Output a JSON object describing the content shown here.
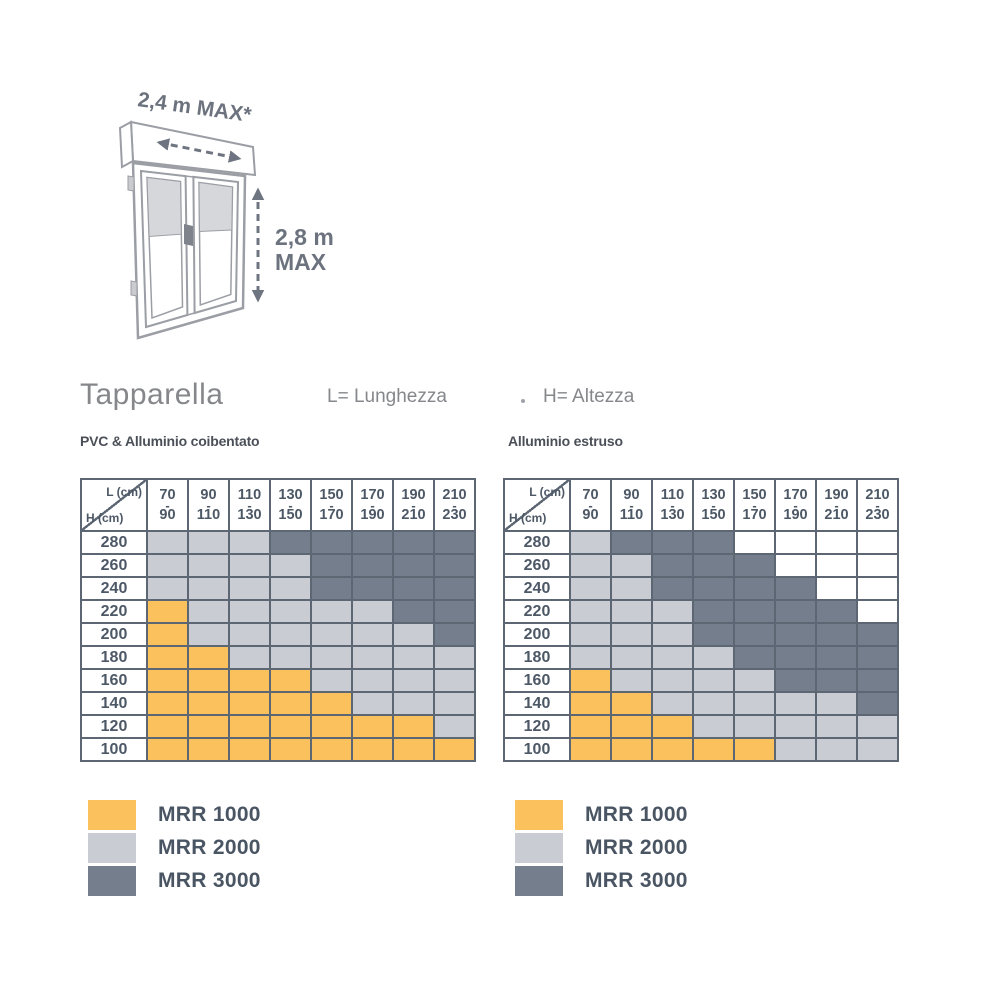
{
  "diagram": {
    "width_label": "2,4 m MAX*",
    "height_label_line1": "2,8 m",
    "height_label_line2": "MAX"
  },
  "title": "Tapparella",
  "dimension_key": {
    "length": "L= Lunghezza",
    "height": "H= Altezza"
  },
  "corner": {
    "length": "L (cm)",
    "height": "H (cm)"
  },
  "col_headers": [
    [
      "70",
      "90"
    ],
    [
      "90",
      "110"
    ],
    [
      "110",
      "130"
    ],
    [
      "130",
      "150"
    ],
    [
      "150",
      "170"
    ],
    [
      "170",
      "190"
    ],
    [
      "190",
      "210"
    ],
    [
      "210",
      "230"
    ]
  ],
  "row_headers": [
    "280",
    "260",
    "240",
    "220",
    "200",
    "180",
    "160",
    "140",
    "120",
    "100"
  ],
  "colors": {
    "1": "#FBC15C",
    "2": "#C9CDD3",
    "3": "#757E8C",
    "0": "#FFFFFF",
    "border": "#5D6673"
  },
  "legend": [
    {
      "code": "1",
      "label": "MRR 1000"
    },
    {
      "code": "2",
      "label": "MRR 2000"
    },
    {
      "code": "3",
      "label": "MRR 3000"
    }
  ],
  "tables": [
    {
      "subtitle": "PVC & Alluminio coibentato",
      "cells": [
        [
          "2",
          "2",
          "2",
          "3",
          "3",
          "3",
          "3",
          "3"
        ],
        [
          "2",
          "2",
          "2",
          "2",
          "3",
          "3",
          "3",
          "3"
        ],
        [
          "2",
          "2",
          "2",
          "2",
          "3",
          "3",
          "3",
          "3"
        ],
        [
          "1",
          "2",
          "2",
          "2",
          "2",
          "2",
          "3",
          "3"
        ],
        [
          "1",
          "2",
          "2",
          "2",
          "2",
          "2",
          "2",
          "3"
        ],
        [
          "1",
          "1",
          "2",
          "2",
          "2",
          "2",
          "2",
          "2"
        ],
        [
          "1",
          "1",
          "1",
          "1",
          "2",
          "2",
          "2",
          "2"
        ],
        [
          "1",
          "1",
          "1",
          "1",
          "1",
          "2",
          "2",
          "2"
        ],
        [
          "1",
          "1",
          "1",
          "1",
          "1",
          "1",
          "1",
          "2"
        ],
        [
          "1",
          "1",
          "1",
          "1",
          "1",
          "1",
          "1",
          "1"
        ]
      ]
    },
    {
      "subtitle": "Alluminio estruso",
      "cells": [
        [
          "2",
          "3",
          "3",
          "3",
          "0",
          "0",
          "0",
          "0"
        ],
        [
          "2",
          "2",
          "3",
          "3",
          "3",
          "0",
          "0",
          "0"
        ],
        [
          "2",
          "2",
          "3",
          "3",
          "3",
          "3",
          "0",
          "0"
        ],
        [
          "2",
          "2",
          "2",
          "3",
          "3",
          "3",
          "3",
          "0"
        ],
        [
          "2",
          "2",
          "2",
          "3",
          "3",
          "3",
          "3",
          "3"
        ],
        [
          "2",
          "2",
          "2",
          "2",
          "3",
          "3",
          "3",
          "3"
        ],
        [
          "1",
          "2",
          "2",
          "2",
          "2",
          "3",
          "3",
          "3"
        ],
        [
          "1",
          "1",
          "2",
          "2",
          "2",
          "2",
          "2",
          "3"
        ],
        [
          "1",
          "1",
          "1",
          "2",
          "2",
          "2",
          "2",
          "2"
        ],
        [
          "1",
          "1",
          "1",
          "1",
          "1",
          "2",
          "2",
          "2"
        ]
      ]
    }
  ]
}
